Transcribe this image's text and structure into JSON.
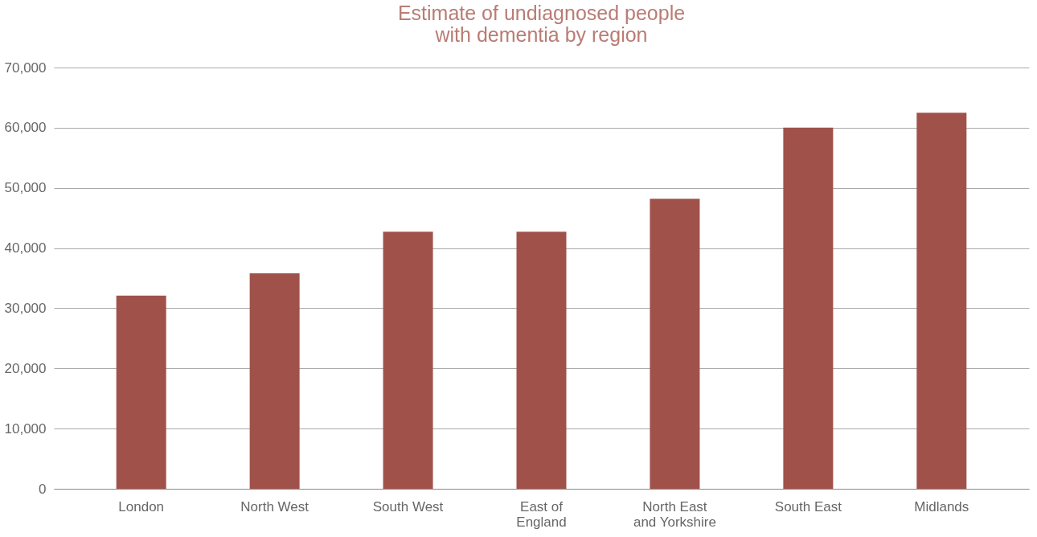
{
  "chart_data": {
    "type": "bar",
    "title": "Estimate of undiagnosed people with dementia by region",
    "categories": [
      "London",
      "North West",
      "South West",
      "East of England",
      "North East and Yorkshire",
      "South East",
      "Midlands"
    ],
    "values": [
      32100,
      35800,
      42700,
      42700,
      48200,
      60000,
      62500
    ],
    "color": "#a0524a",
    "ylim": [
      0,
      70000
    ],
    "yticks": [
      0,
      {
        "value": 10000,
        "label": "10,000"
      },
      {
        "value": 20000,
        "label": "20,000"
      },
      {
        "value": 30000,
        "label": "30,000"
      },
      {
        "value": 40000,
        "label": "40,000"
      },
      {
        "value": 50000,
        "label": "50,000"
      },
      {
        "value": 60000,
        "label": "60,000"
      },
      {
        "value": 70000,
        "label": "70,000"
      }
    ],
    "grid": "y"
  }
}
